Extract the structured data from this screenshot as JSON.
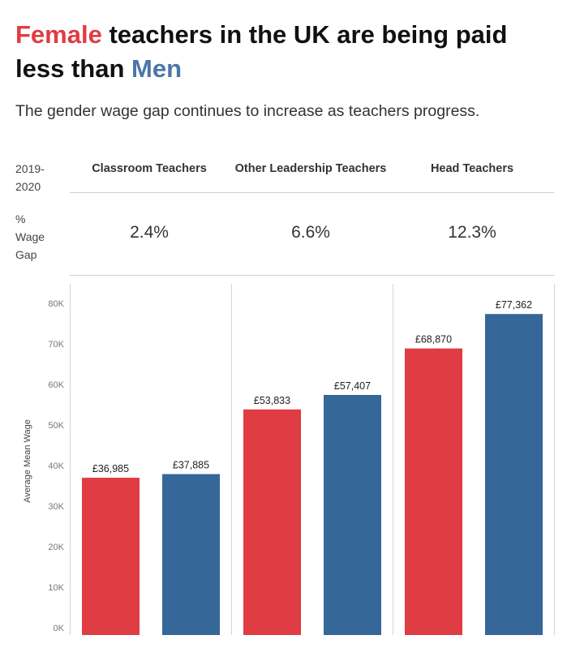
{
  "title": {
    "female_word": "Female",
    "middle": " teachers in the UK are being paid less than ",
    "men_word": "Men"
  },
  "subtitle": "The gender wage gap continues to increase as teachers progress.",
  "table": {
    "year_label": "2019-2020",
    "gap_label": "% Wage Gap",
    "columns": [
      {
        "header": "Classroom Teachers",
        "gap": "2.4%"
      },
      {
        "header": "Other Leadership Teachers",
        "gap": "6.6%"
      },
      {
        "header": "Head Teachers",
        "gap": "12.3%"
      }
    ]
  },
  "colors": {
    "female": "#e03c43",
    "male": "#356798"
  },
  "chart_data": {
    "type": "bar",
    "categories": [
      "Classroom Teachers",
      "Other Leadership Teachers",
      "Head Teachers"
    ],
    "series": [
      {
        "values": [
          36985,
          53833,
          68870
        ],
        "labels": [
          "£36,985",
          "£53,833",
          "£68,870"
        ],
        "color": "#e03c43"
      },
      {
        "values": [
          37885,
          57407,
          77362
        ],
        "labels": [
          "£37,885",
          "£57,407",
          "£77,362"
        ],
        "color": "#356798"
      }
    ],
    "ylabel": "Average Mean Wage",
    "ylim": [
      0,
      80000
    ],
    "yticks": [
      0,
      10000,
      20000,
      30000,
      40000,
      50000,
      60000,
      70000,
      80000
    ],
    "ytick_labels": [
      "0K",
      "10K",
      "20K",
      "30K",
      "40K",
      "50K",
      "60K",
      "70K",
      "80K"
    ]
  }
}
